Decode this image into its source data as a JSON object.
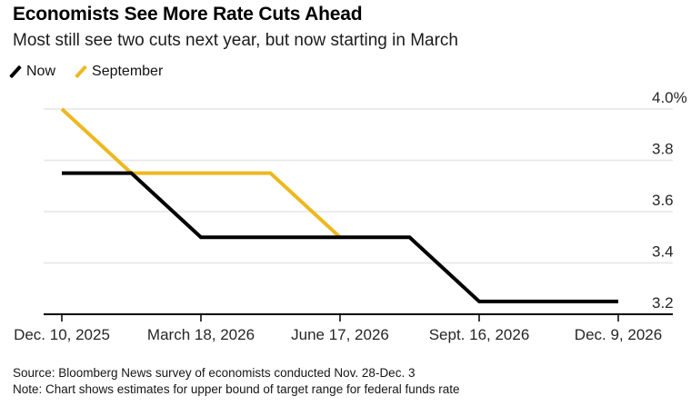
{
  "header": {
    "title": "Economists See More Rate Cuts Ahead",
    "subtitle": "Most still see two cuts next year, but now starting in March"
  },
  "legend": {
    "items": [
      {
        "label": "Now",
        "color": "#000000"
      },
      {
        "label": "September",
        "color": "#EDB820"
      }
    ]
  },
  "chart_data": {
    "type": "line",
    "title": "Economists See More Rate Cuts Ahead",
    "subtitle": "Most still see two cuts next year, but now starting in March",
    "x_tick_labels": [
      "Dec. 10, 2025",
      "March 18, 2026",
      "June 17, 2026",
      "Sept. 16, 2026",
      "Dec. 9, 2026"
    ],
    "x_tick_indices": [
      0,
      2,
      4,
      6,
      8
    ],
    "x_layout_note": "9 evenly spaced data points (FOMC meeting dates); labeled ticks fall on every second point",
    "series": [
      {
        "name": "September",
        "color": "#EDB820",
        "values": [
          4.0,
          3.75,
          3.75,
          3.75,
          3.5,
          null,
          null,
          null,
          null
        ]
      },
      {
        "name": "Now",
        "color": "#000000",
        "values": [
          3.75,
          3.75,
          3.5,
          3.5,
          3.5,
          3.5,
          3.25,
          3.25,
          3.25
        ]
      }
    ],
    "y_ticks": [
      4.0,
      3.8,
      3.6,
      3.4,
      3.2
    ],
    "y_tick_labels": [
      "4.0%",
      "3.8",
      "3.6",
      "3.4",
      "3.2"
    ],
    "ylim": [
      3.2,
      4.0
    ],
    "unit": "%",
    "grid": "horizontal",
    "legend_position": "top-left"
  },
  "footer": {
    "source": "Source: Bloomberg News survey of economists conducted Nov. 28-Dec. 3",
    "note": "Note: Chart shows estimates for upper bound of target range for federal funds rate"
  },
  "colors": {
    "accent_yellow": "#EDB820",
    "line_black": "#000000",
    "gridline": "#E6E6E6",
    "axis": "#000000",
    "background": "#FFFFFF"
  }
}
